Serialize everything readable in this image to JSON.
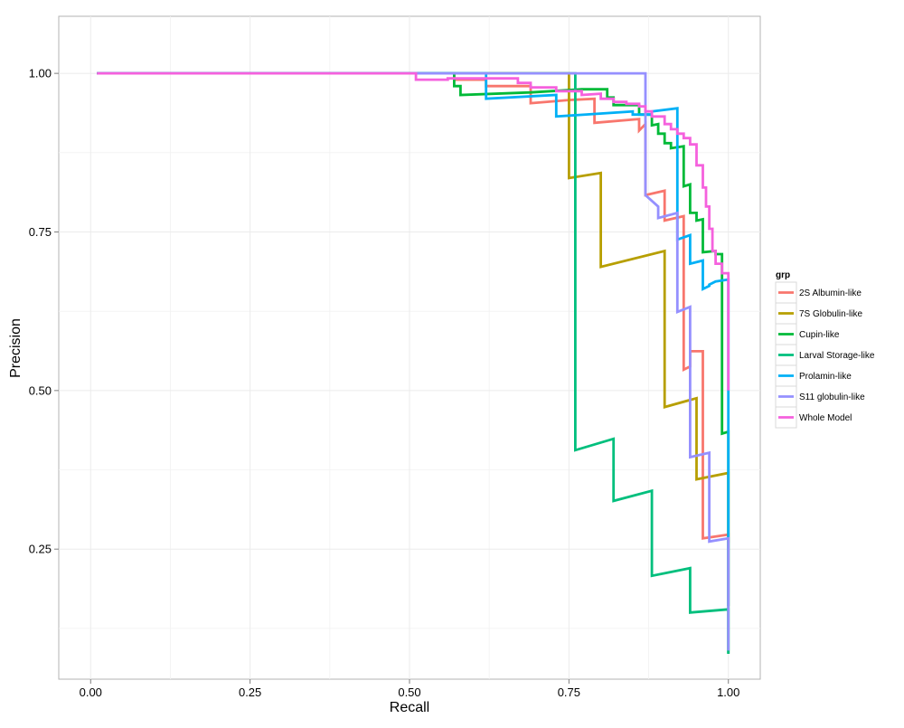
{
  "chart_data": {
    "type": "line",
    "title": "",
    "xlabel": "Recall",
    "ylabel": "Precision",
    "xlim": [
      -0.05,
      1.05
    ],
    "ylim": [
      0.045,
      1.09
    ],
    "x_ticks": [
      0.0,
      0.25,
      0.5,
      0.75,
      1.0
    ],
    "x_tick_labels": [
      "0.00",
      "0.25",
      "0.50",
      "0.75",
      "1.00"
    ],
    "y_ticks": [
      0.25,
      0.5,
      0.75,
      1.0
    ],
    "y_tick_labels": [
      "0.25",
      "0.50",
      "0.75",
      "1.00"
    ],
    "grid": true,
    "legend": {
      "title": "grp",
      "position": "right"
    },
    "series": [
      {
        "name": "2S Albumin-like",
        "color": "#F8766D",
        "points": [
          [
            0.01,
            1.0
          ],
          [
            0.57,
            1.0
          ],
          [
            0.57,
            0.99
          ],
          [
            0.62,
            0.99
          ],
          [
            0.62,
            0.98
          ],
          [
            0.69,
            0.98
          ],
          [
            0.69,
            0.953
          ],
          [
            0.75,
            0.958
          ],
          [
            0.79,
            0.96
          ],
          [
            0.79,
            0.922
          ],
          [
            0.86,
            0.928
          ],
          [
            0.86,
            0.91
          ],
          [
            0.87,
            0.92
          ],
          [
            0.87,
            0.808
          ],
          [
            0.9,
            0.815
          ],
          [
            0.9,
            0.768
          ],
          [
            0.93,
            0.775
          ],
          [
            0.93,
            0.533
          ],
          [
            0.94,
            0.538
          ],
          [
            0.94,
            0.562
          ],
          [
            0.96,
            0.562
          ],
          [
            0.96,
            0.267
          ],
          [
            0.98,
            0.27
          ],
          [
            1.0,
            0.273
          ],
          [
            1.0,
            0.26
          ]
        ]
      },
      {
        "name": "7S Globulin-like",
        "color": "#B79F00",
        "points": [
          [
            0.01,
            1.0
          ],
          [
            0.75,
            1.0
          ],
          [
            0.75,
            0.835
          ],
          [
            0.8,
            0.843
          ],
          [
            0.8,
            0.695
          ],
          [
            0.9,
            0.72
          ],
          [
            0.9,
            0.474
          ],
          [
            0.95,
            0.488
          ],
          [
            0.95,
            0.36
          ],
          [
            1.0,
            0.37
          ],
          [
            1.0,
            0.16
          ]
        ]
      },
      {
        "name": "Cupin-like",
        "color": "#00BA38",
        "points": [
          [
            0.01,
            1.0
          ],
          [
            0.57,
            1.0
          ],
          [
            0.57,
            0.98
          ],
          [
            0.58,
            0.98
          ],
          [
            0.58,
            0.966
          ],
          [
            0.69,
            0.97
          ],
          [
            0.77,
            0.975
          ],
          [
            0.81,
            0.975
          ],
          [
            0.81,
            0.962
          ],
          [
            0.82,
            0.962
          ],
          [
            0.82,
            0.95
          ],
          [
            0.86,
            0.95
          ],
          [
            0.86,
            0.935
          ],
          [
            0.88,
            0.935
          ],
          [
            0.88,
            0.918
          ],
          [
            0.89,
            0.92
          ],
          [
            0.89,
            0.905
          ],
          [
            0.9,
            0.905
          ],
          [
            0.9,
            0.89
          ],
          [
            0.91,
            0.89
          ],
          [
            0.91,
            0.882
          ],
          [
            0.93,
            0.885
          ],
          [
            0.93,
            0.822
          ],
          [
            0.94,
            0.825
          ],
          [
            0.94,
            0.78
          ],
          [
            0.95,
            0.78
          ],
          [
            0.95,
            0.768
          ],
          [
            0.96,
            0.77
          ],
          [
            0.96,
            0.718
          ],
          [
            0.98,
            0.72
          ],
          [
            0.98,
            0.715
          ],
          [
            0.99,
            0.715
          ],
          [
            0.99,
            0.432
          ],
          [
            1.0,
            0.435
          ],
          [
            1.0,
            0.085
          ]
        ]
      },
      {
        "name": "Larval Storage-like",
        "color": "#00BF7D",
        "points": [
          [
            0.01,
            1.0
          ],
          [
            0.76,
            1.0
          ],
          [
            0.76,
            0.406
          ],
          [
            0.82,
            0.424
          ],
          [
            0.82,
            0.326
          ],
          [
            0.88,
            0.342
          ],
          [
            0.88,
            0.208
          ],
          [
            0.94,
            0.22
          ],
          [
            0.94,
            0.15
          ],
          [
            1.0,
            0.155
          ],
          [
            1.0,
            0.085
          ]
        ]
      },
      {
        "name": "Prolamin-like",
        "color": "#00B0F6",
        "points": [
          [
            0.01,
            1.0
          ],
          [
            0.62,
            1.0
          ],
          [
            0.62,
            0.96
          ],
          [
            0.73,
            0.966
          ],
          [
            0.73,
            0.932
          ],
          [
            0.85,
            0.94
          ],
          [
            0.85,
            0.935
          ],
          [
            0.88,
            0.935
          ],
          [
            0.88,
            0.94
          ],
          [
            0.92,
            0.945
          ],
          [
            0.92,
            0.738
          ],
          [
            0.94,
            0.745
          ],
          [
            0.94,
            0.7
          ],
          [
            0.96,
            0.705
          ],
          [
            0.96,
            0.66
          ],
          [
            0.97,
            0.665
          ],
          [
            0.97,
            0.667
          ],
          [
            0.98,
            0.672
          ],
          [
            1.0,
            0.675
          ],
          [
            1.0,
            0.16
          ]
        ]
      },
      {
        "name": "S11 globulin-like",
        "color": "#9590FF",
        "points": [
          [
            0.01,
            1.0
          ],
          [
            0.87,
            1.0
          ],
          [
            0.87,
            0.808
          ],
          [
            0.89,
            0.79
          ],
          [
            0.89,
            0.772
          ],
          [
            0.92,
            0.78
          ],
          [
            0.92,
            0.624
          ],
          [
            0.94,
            0.632
          ],
          [
            0.94,
            0.395
          ],
          [
            0.97,
            0.402
          ],
          [
            0.97,
            0.262
          ],
          [
            1.0,
            0.267
          ],
          [
            1.0,
            0.09
          ]
        ]
      },
      {
        "name": "Whole Model",
        "color": "#F561DD",
        "points": [
          [
            0.01,
            1.0
          ],
          [
            0.51,
            1.0
          ],
          [
            0.51,
            0.99
          ],
          [
            0.56,
            0.99
          ],
          [
            0.56,
            0.992
          ],
          [
            0.67,
            0.992
          ],
          [
            0.67,
            0.985
          ],
          [
            0.69,
            0.985
          ],
          [
            0.69,
            0.978
          ],
          [
            0.73,
            0.978
          ],
          [
            0.73,
            0.972
          ],
          [
            0.77,
            0.972
          ],
          [
            0.77,
            0.966
          ],
          [
            0.8,
            0.968
          ],
          [
            0.8,
            0.96
          ],
          [
            0.82,
            0.96
          ],
          [
            0.82,
            0.955
          ],
          [
            0.84,
            0.955
          ],
          [
            0.84,
            0.952
          ],
          [
            0.86,
            0.952
          ],
          [
            0.86,
            0.948
          ],
          [
            0.87,
            0.948
          ],
          [
            0.87,
            0.94
          ],
          [
            0.88,
            0.94
          ],
          [
            0.88,
            0.932
          ],
          [
            0.9,
            0.932
          ],
          [
            0.9,
            0.92
          ],
          [
            0.91,
            0.92
          ],
          [
            0.91,
            0.912
          ],
          [
            0.92,
            0.912
          ],
          [
            0.92,
            0.905
          ],
          [
            0.93,
            0.905
          ],
          [
            0.93,
            0.898
          ],
          [
            0.94,
            0.898
          ],
          [
            0.94,
            0.888
          ],
          [
            0.95,
            0.888
          ],
          [
            0.95,
            0.855
          ],
          [
            0.96,
            0.855
          ],
          [
            0.96,
            0.82
          ],
          [
            0.965,
            0.82
          ],
          [
            0.965,
            0.79
          ],
          [
            0.97,
            0.79
          ],
          [
            0.97,
            0.755
          ],
          [
            0.975,
            0.755
          ],
          [
            0.975,
            0.72
          ],
          [
            0.98,
            0.72
          ],
          [
            0.98,
            0.7
          ],
          [
            0.99,
            0.7
          ],
          [
            0.99,
            0.685
          ],
          [
            1.0,
            0.685
          ],
          [
            1.0,
            0.5
          ]
        ]
      }
    ]
  }
}
